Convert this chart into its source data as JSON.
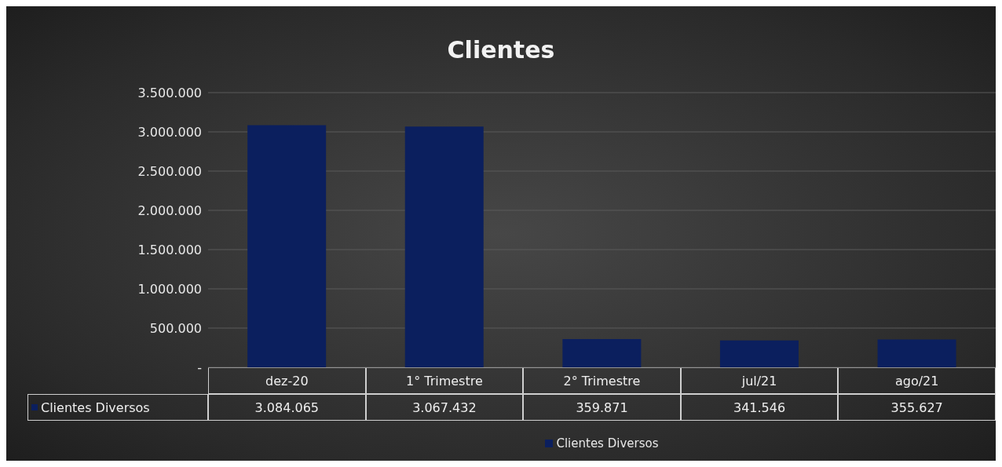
{
  "chart_data": {
    "type": "bar",
    "title": "Clientes",
    "categories": [
      "dez-20",
      "1° Trimestre",
      "2° Trimestre",
      "jul/21",
      "ago/21"
    ],
    "series": [
      {
        "name": "Clientes Diversos",
        "color": "#0b1f5e",
        "values": [
          3084065,
          3067432,
          359871,
          341546,
          355627
        ],
        "value_labels": [
          "3.084.065",
          "3.067.432",
          "359.871",
          "341.546",
          "355.627"
        ]
      }
    ],
    "ylim": [
      0,
      3500000
    ],
    "yticks": [
      {
        "value": 0,
        "label": "-"
      },
      {
        "value": 500000,
        "label": "500.000"
      },
      {
        "value": 1000000,
        "label": "1.000.000"
      },
      {
        "value": 1500000,
        "label": "1.500.000"
      },
      {
        "value": 2000000,
        "label": "2.000.000"
      },
      {
        "value": 2500000,
        "label": "2.500.000"
      },
      {
        "value": 3000000,
        "label": "3.000.000"
      },
      {
        "value": 3500000,
        "label": "3.500.000"
      }
    ],
    "grid": "y",
    "legend": "bottom"
  }
}
